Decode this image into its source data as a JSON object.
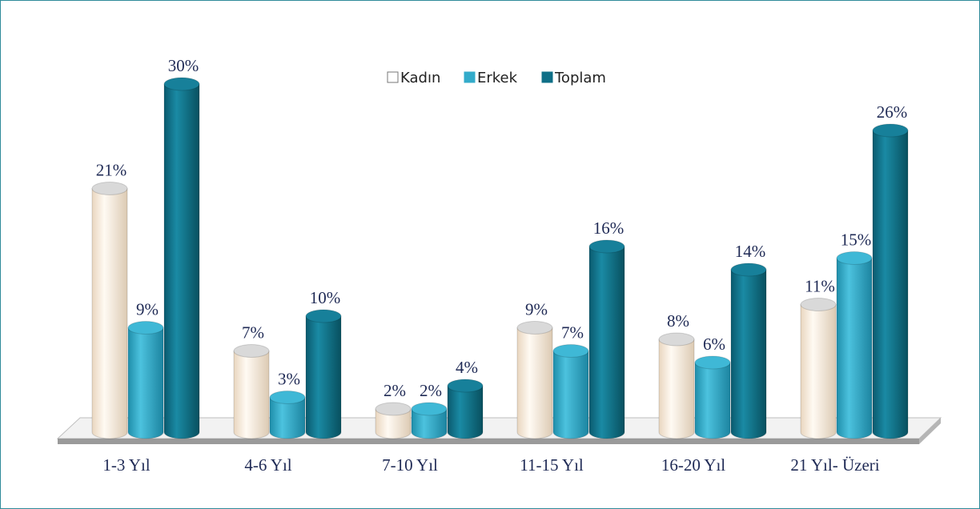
{
  "chart_data": {
    "type": "bar",
    "categories": [
      "1-3 Yıl",
      "4-6 Yıl",
      "7-10 Yıl",
      "11-15 Yıl",
      "16-20 Yıl",
      "21 Yıl- Üzeri"
    ],
    "series": [
      {
        "name": "Kadın",
        "color": "#fbeedd",
        "values": [
          21,
          7,
          2,
          9,
          8,
          11
        ],
        "value_labels": [
          "21%",
          "7%",
          "2%",
          "9%",
          "8%",
          "11%"
        ]
      },
      {
        "name": "Erkek",
        "color": "#33abca",
        "values": [
          9,
          3,
          2,
          7,
          6,
          15
        ],
        "value_labels": [
          "9%",
          "3%",
          "2%",
          "7%",
          "6%",
          "15%"
        ]
      },
      {
        "name": "Toplam",
        "color": "#0f6f87",
        "values": [
          30,
          10,
          4,
          16,
          14,
          26
        ],
        "value_labels": [
          "30%",
          "10%",
          "4%",
          "16%",
          "14%",
          "26%"
        ]
      }
    ],
    "legend": "top"
  }
}
